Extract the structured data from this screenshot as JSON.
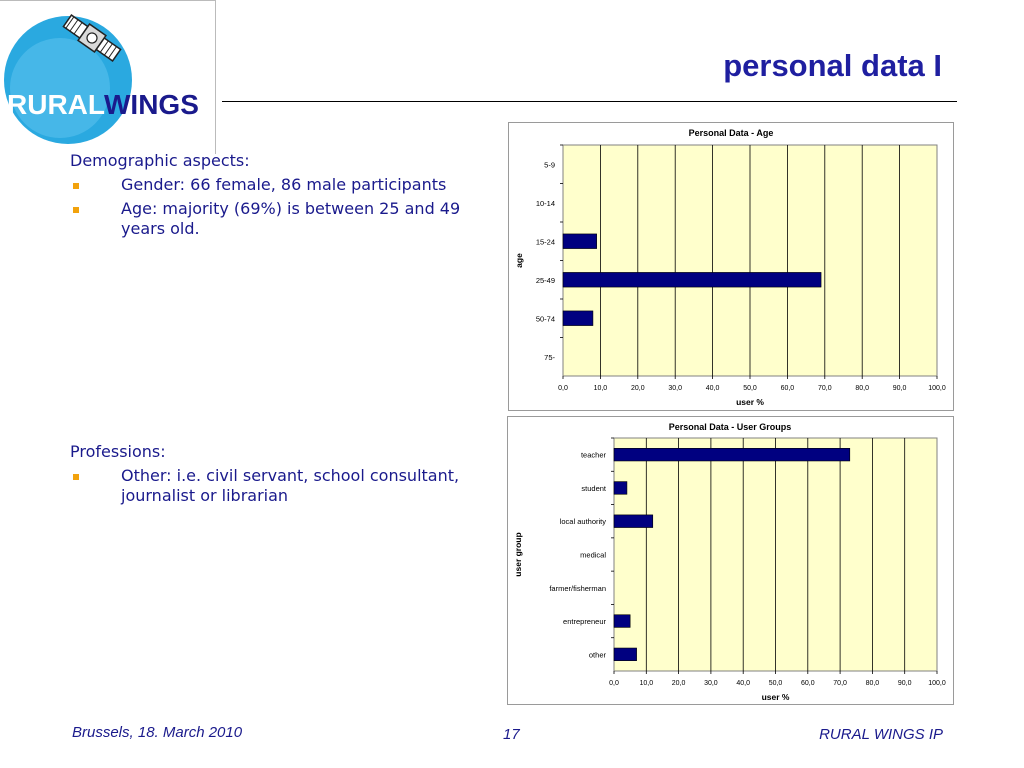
{
  "slide": {
    "title": "personal data I",
    "logo": {
      "text_left": "RURAL",
      "text_right": "WINGS"
    }
  },
  "demographics": {
    "heading": "Demographic aspects:",
    "bullets": [
      "Gender: 66 female, 86 male participants",
      "Age: majority (69%) is between 25 and 49 years old."
    ]
  },
  "professions": {
    "heading": "Professions:",
    "bullets": [
      "Other: i.e. civil servant, school consultant, journalist or librarian"
    ]
  },
  "footer": {
    "left": "Brussels, 18. March 2010",
    "page": "17",
    "right": "RURAL WINGS IP"
  },
  "colors": {
    "title": "#1f1fa0",
    "text": "#1a1a8c",
    "bullet": "#f2a20c",
    "bar": "#000080",
    "plot_bg": "#ffffcc"
  },
  "chart_data": [
    {
      "type": "bar",
      "orientation": "horizontal",
      "title": "Personal Data - Age",
      "xlabel": "user %",
      "ylabel": "age",
      "categories": [
        "5-9",
        "10-14",
        "15-24",
        "25-49",
        "50-74",
        "75-"
      ],
      "values": [
        0,
        0,
        9,
        69,
        8,
        0
      ],
      "xlim": [
        0,
        100
      ],
      "xticks": [
        "0,0",
        "10,0",
        "20,0",
        "30,0",
        "40,0",
        "50,0",
        "60,0",
        "70,0",
        "80,0",
        "90,0",
        "100,0"
      ],
      "grid": true,
      "legend": "none"
    },
    {
      "type": "bar",
      "orientation": "horizontal",
      "title": "Personal Data - User Groups",
      "xlabel": "user %",
      "ylabel": "user group",
      "categories": [
        "teacher",
        "student",
        "local authority",
        "medical",
        "farmer/fisherman",
        "entrepreneur",
        "other"
      ],
      "values": [
        73,
        4,
        12,
        0,
        0,
        5,
        7
      ],
      "xlim": [
        0,
        100
      ],
      "xticks": [
        "0,0",
        "10,0",
        "20,0",
        "30,0",
        "40,0",
        "50,0",
        "60,0",
        "70,0",
        "80,0",
        "90,0",
        "100,0"
      ],
      "grid": true,
      "legend": "none"
    }
  ]
}
